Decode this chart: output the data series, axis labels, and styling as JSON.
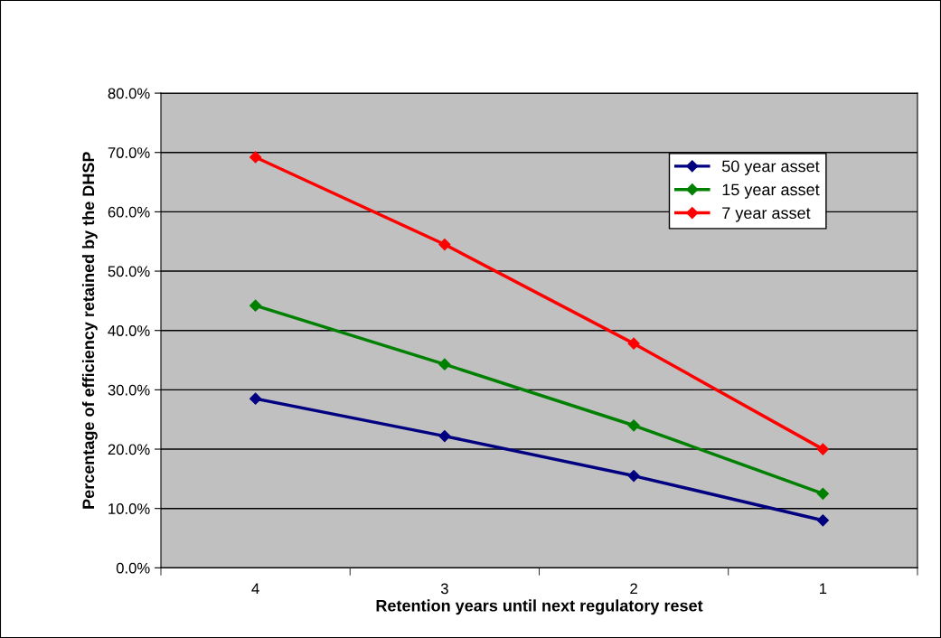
{
  "chart_data": {
    "type": "line",
    "xlabel": "Retention years until next regulatory reset",
    "ylabel": "Percentage of efficiency retained by the DHSP",
    "categories": [
      "4",
      "3",
      "2",
      "1"
    ],
    "series": [
      {
        "name": "50 year asset",
        "color": "#000080",
        "values": [
          28.5,
          22.2,
          15.5,
          8.0
        ]
      },
      {
        "name": "15 year asset",
        "color": "#008000",
        "values": [
          44.2,
          34.3,
          24.0,
          12.5
        ]
      },
      {
        "name": "7 year asset",
        "color": "#ff0000",
        "values": [
          69.2,
          54.5,
          37.8,
          20.0
        ]
      }
    ],
    "ylim": [
      0,
      80
    ],
    "yticks": [
      {
        "value": 0,
        "label": "0.0%"
      },
      {
        "value": 10,
        "label": "10.0%"
      },
      {
        "value": 20,
        "label": "20.0%"
      },
      {
        "value": 30,
        "label": "30.0%"
      },
      {
        "value": 40,
        "label": "40.0%"
      },
      {
        "value": 50,
        "label": "50.0%"
      },
      {
        "value": 60,
        "label": "60.0%"
      },
      {
        "value": 70,
        "label": "70.0%"
      },
      {
        "value": 80,
        "label": "80.0%"
      }
    ],
    "grid": "y",
    "legend": "top right",
    "marker": "diamond",
    "line_style": "solid"
  }
}
